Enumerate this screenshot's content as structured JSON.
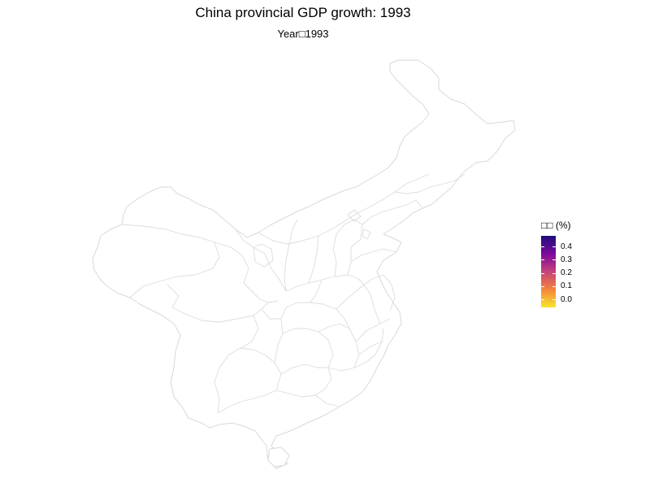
{
  "title": "China provincial GDP growth: 1993",
  "subtitle": "Year□1993",
  "legend": {
    "title": "□□ (%)",
    "labels": [
      "0.4",
      "0.3",
      "0.2",
      "0.1",
      "0.0"
    ],
    "colors": [
      "#1e0c78",
      "#7a0a9e",
      "#c6427a",
      "#f3843c",
      "#f7e62a"
    ]
  },
  "map": {
    "region": "China",
    "fill_color": "#ffffff",
    "border_color": "#d9d9d9"
  }
}
